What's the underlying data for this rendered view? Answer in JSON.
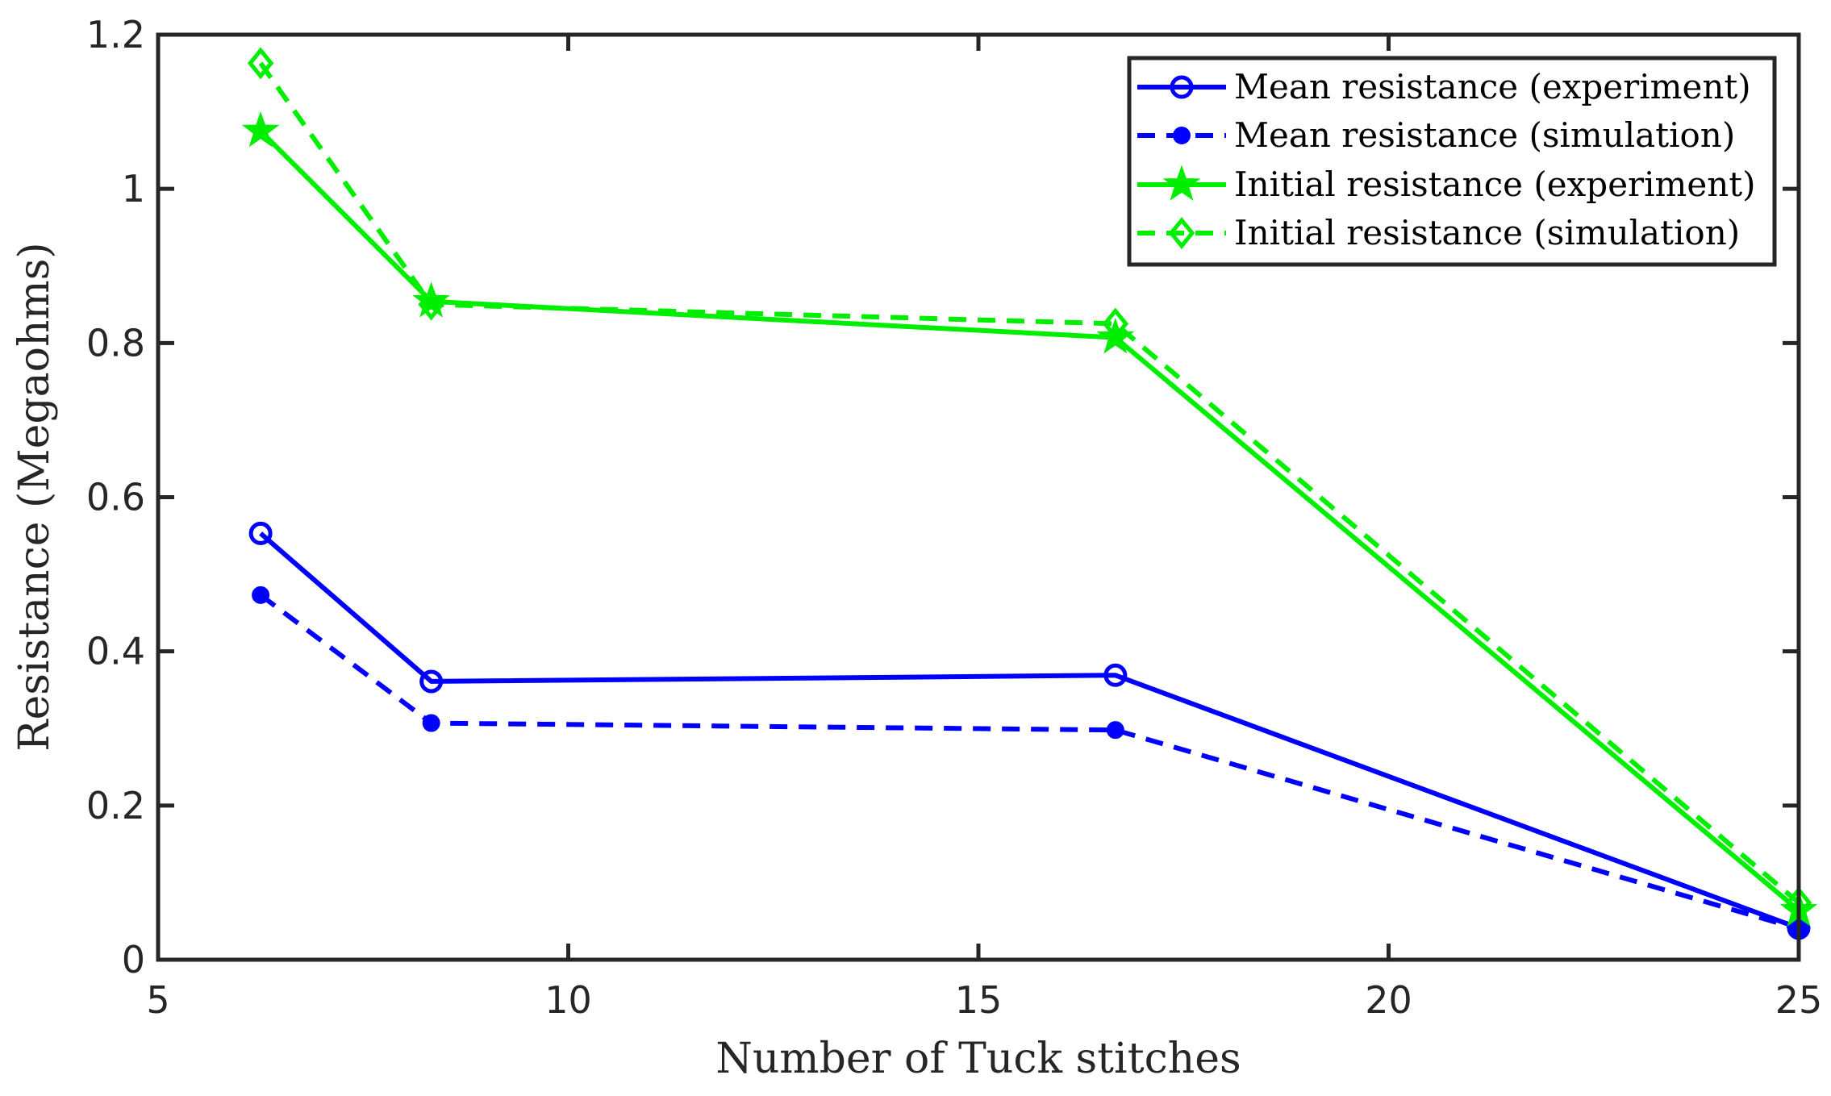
{
  "chart_data": {
    "type": "line",
    "title": "",
    "xlabel": "Number of Tuck stitches",
    "ylabel": "Resistance (Megaohms)",
    "xlim": [
      5,
      25
    ],
    "ylim": [
      0,
      1.2
    ],
    "xticks": [
      5,
      10,
      15,
      20,
      25
    ],
    "yticks": [
      0,
      0.2,
      0.4,
      0.6,
      0.8,
      1,
      1.2
    ],
    "xtick_labels": [
      "5",
      "10",
      "15",
      "20",
      "25"
    ],
    "ytick_labels": [
      "0",
      "0.2",
      "0.4",
      "0.6",
      "0.8",
      "1",
      "1.2"
    ],
    "grid": false,
    "legend_position": "top-right",
    "x": [
      6.25,
      8.33,
      16.67,
      25
    ],
    "series": [
      {
        "name": "Mean resistance (experiment)",
        "values": [
          0.553,
          0.361,
          0.369,
          0.041
        ],
        "color": "#0000ff",
        "line_style": "solid",
        "marker": "circle"
      },
      {
        "name": "Mean resistance (simulation)",
        "values": [
          0.473,
          0.307,
          0.298,
          0.04
        ],
        "color": "#0000ff",
        "line_style": "dashed",
        "marker": "dot"
      },
      {
        "name": "Initial resistance (experiment)",
        "values": [
          1.075,
          0.854,
          0.807,
          0.064
        ],
        "color": "#00ee00",
        "line_style": "solid",
        "marker": "star"
      },
      {
        "name": "Initial resistance (simulation)",
        "values": [
          1.163,
          0.85,
          0.825,
          0.074
        ],
        "color": "#00ee00",
        "line_style": "dashed",
        "marker": "diamond"
      }
    ]
  }
}
